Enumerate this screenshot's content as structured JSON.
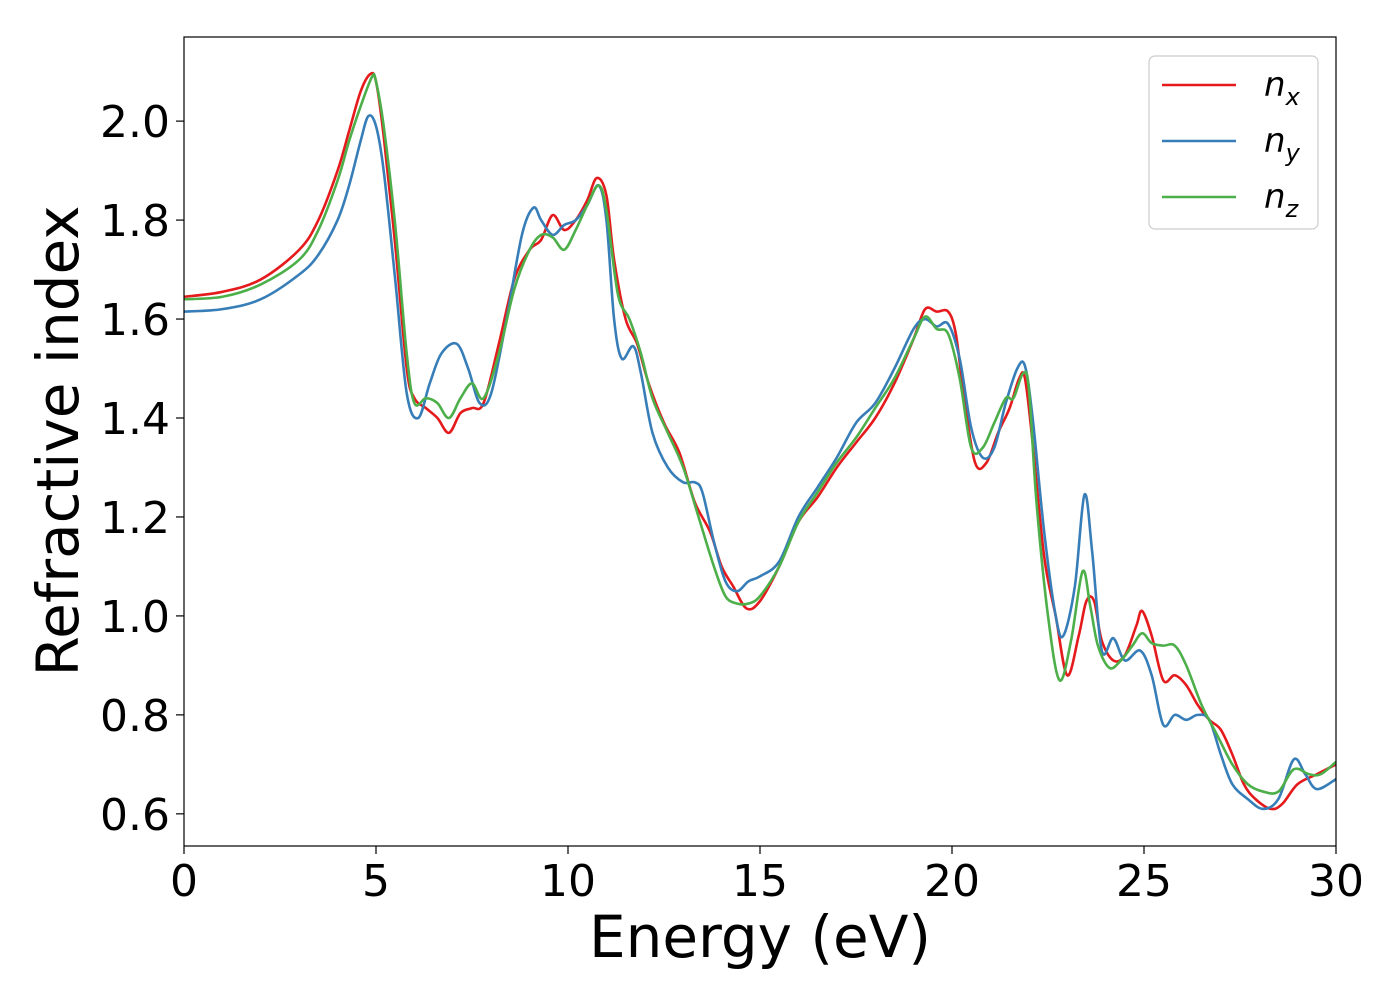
{
  "chart_data": {
    "type": "line",
    "title": "",
    "xlabel": "Energy (eV)",
    "ylabel": "Refractive index",
    "xlim": [
      0,
      30
    ],
    "ylim": [
      0.535,
      2.17
    ],
    "xticks": [
      0,
      5,
      10,
      15,
      20,
      25,
      30
    ],
    "yticks": [
      0.6,
      0.8,
      1.0,
      1.2,
      1.4,
      1.6,
      1.8,
      2.0
    ],
    "xtick_labels": [
      "0",
      "5",
      "10",
      "15",
      "20",
      "25",
      "30"
    ],
    "ytick_labels": [
      "0.6",
      "0.8",
      "1.0",
      "1.2",
      "1.4",
      "1.6",
      "1.8",
      "2.0"
    ],
    "grid": false,
    "legend_position": "top-right",
    "series": [
      {
        "name_base": "n",
        "name_sub": "x",
        "color": "#e41a1c",
        "x": [
          0,
          1,
          2,
          3,
          3.5,
          4,
          4.3,
          4.6,
          4.85,
          5.0,
          5.2,
          5.5,
          5.8,
          6.0,
          6.3,
          6.6,
          6.9,
          7.2,
          7.5,
          7.8,
          8.2,
          8.6,
          9.0,
          9.3,
          9.6,
          9.9,
          10.2,
          10.5,
          10.75,
          11.0,
          11.2,
          11.5,
          11.8,
          12.1,
          12.5,
          12.9,
          13.3,
          13.7,
          14.0,
          14.3,
          14.65,
          15.0,
          15.5,
          16.0,
          16.5,
          17.0,
          17.5,
          18.0,
          18.5,
          19.0,
          19.3,
          19.6,
          19.9,
          20.1,
          20.3,
          20.6,
          20.9,
          21.2,
          21.5,
          21.75,
          21.9,
          22.1,
          22.4,
          22.7,
          23.0,
          23.3,
          23.5,
          23.7,
          23.9,
          24.2,
          24.5,
          24.8,
          24.95,
          25.2,
          25.5,
          25.8,
          26.1,
          26.4,
          26.7,
          27.0,
          27.3,
          27.6,
          27.9,
          28.3,
          28.6,
          29.0,
          29.5,
          30.0
        ],
        "y": [
          1.645,
          1.655,
          1.68,
          1.74,
          1.8,
          1.9,
          1.98,
          2.06,
          2.095,
          2.08,
          1.97,
          1.75,
          1.5,
          1.44,
          1.42,
          1.4,
          1.37,
          1.41,
          1.42,
          1.43,
          1.55,
          1.68,
          1.74,
          1.76,
          1.81,
          1.78,
          1.8,
          1.84,
          1.885,
          1.85,
          1.72,
          1.6,
          1.55,
          1.47,
          1.39,
          1.33,
          1.23,
          1.17,
          1.1,
          1.06,
          1.015,
          1.03,
          1.1,
          1.19,
          1.24,
          1.3,
          1.35,
          1.4,
          1.47,
          1.56,
          1.62,
          1.615,
          1.615,
          1.57,
          1.45,
          1.31,
          1.31,
          1.37,
          1.42,
          1.48,
          1.48,
          1.35,
          1.12,
          1.0,
          0.88,
          0.96,
          1.03,
          1.03,
          0.95,
          0.91,
          0.92,
          0.98,
          1.01,
          0.96,
          0.87,
          0.88,
          0.86,
          0.82,
          0.79,
          0.77,
          0.72,
          0.66,
          0.63,
          0.61,
          0.62,
          0.66,
          0.68,
          0.7
        ]
      },
      {
        "name_base": "n",
        "name_sub": "y",
        "color": "#377eb8",
        "x": [
          0,
          1,
          2,
          3,
          3.5,
          4,
          4.3,
          4.6,
          4.8,
          5.0,
          5.2,
          5.5,
          5.8,
          6.1,
          6.4,
          6.7,
          7.1,
          7.4,
          7.7,
          8.0,
          8.4,
          8.8,
          9.1,
          9.3,
          9.6,
          9.9,
          10.2,
          10.5,
          10.8,
          11.0,
          11.2,
          11.4,
          11.7,
          11.9,
          12.2,
          12.6,
          13.0,
          13.3,
          13.5,
          13.8,
          14.1,
          14.4,
          14.7,
          15.0,
          15.5,
          16.0,
          16.5,
          17.0,
          17.5,
          18.0,
          18.5,
          19.0,
          19.3,
          19.6,
          19.9,
          20.2,
          20.5,
          20.8,
          21.1,
          21.4,
          21.7,
          21.9,
          22.1,
          22.4,
          22.7,
          22.9,
          23.2,
          23.45,
          23.65,
          23.9,
          24.2,
          24.5,
          24.9,
          25.2,
          25.5,
          25.8,
          26.1,
          26.4,
          26.7,
          27.0,
          27.3,
          27.7,
          28.1,
          28.5,
          28.9,
          29.2,
          29.5,
          30.0
        ],
        "y": [
          1.615,
          1.62,
          1.64,
          1.69,
          1.73,
          1.8,
          1.87,
          1.96,
          2.01,
          1.99,
          1.9,
          1.68,
          1.45,
          1.4,
          1.47,
          1.53,
          1.55,
          1.5,
          1.43,
          1.45,
          1.6,
          1.77,
          1.825,
          1.8,
          1.77,
          1.79,
          1.8,
          1.83,
          1.87,
          1.8,
          1.6,
          1.52,
          1.545,
          1.49,
          1.37,
          1.3,
          1.27,
          1.27,
          1.25,
          1.15,
          1.07,
          1.05,
          1.07,
          1.08,
          1.11,
          1.2,
          1.26,
          1.32,
          1.39,
          1.43,
          1.5,
          1.58,
          1.6,
          1.585,
          1.59,
          1.52,
          1.38,
          1.32,
          1.34,
          1.43,
          1.5,
          1.505,
          1.4,
          1.17,
          1.0,
          0.96,
          1.06,
          1.245,
          1.13,
          0.93,
          0.955,
          0.91,
          0.93,
          0.88,
          0.78,
          0.8,
          0.79,
          0.8,
          0.79,
          0.72,
          0.66,
          0.63,
          0.61,
          0.63,
          0.71,
          0.68,
          0.65,
          0.67
        ]
      },
      {
        "name_base": "n",
        "name_sub": "z",
        "color": "#4daf4a",
        "x": [
          0,
          1,
          2,
          3,
          3.5,
          4,
          4.3,
          4.6,
          4.9,
          5.0,
          5.2,
          5.5,
          5.8,
          6.0,
          6.3,
          6.6,
          6.9,
          7.2,
          7.5,
          7.8,
          8.2,
          8.6,
          9.0,
          9.3,
          9.6,
          9.9,
          10.2,
          10.5,
          10.8,
          11.0,
          11.3,
          11.6,
          11.9,
          12.2,
          12.6,
          13.0,
          13.4,
          13.8,
          14.1,
          14.4,
          14.7,
          15.0,
          15.5,
          16.0,
          16.5,
          17.0,
          17.5,
          18.0,
          18.5,
          19.0,
          19.3,
          19.6,
          19.9,
          20.2,
          20.5,
          20.8,
          21.1,
          21.4,
          21.6,
          21.85,
          22.0,
          22.2,
          22.5,
          22.8,
          23.1,
          23.4,
          23.6,
          23.8,
          24.1,
          24.4,
          24.7,
          24.95,
          25.2,
          25.5,
          25.8,
          26.1,
          26.5,
          26.9,
          27.3,
          27.7,
          28.1,
          28.5,
          28.9,
          29.3,
          29.6,
          30.0
        ],
        "y": [
          1.64,
          1.645,
          1.67,
          1.72,
          1.78,
          1.88,
          1.96,
          2.03,
          2.09,
          2.08,
          1.99,
          1.79,
          1.53,
          1.43,
          1.44,
          1.43,
          1.4,
          1.44,
          1.47,
          1.44,
          1.53,
          1.66,
          1.74,
          1.77,
          1.765,
          1.74,
          1.78,
          1.83,
          1.87,
          1.82,
          1.65,
          1.6,
          1.53,
          1.44,
          1.37,
          1.3,
          1.2,
          1.1,
          1.04,
          1.025,
          1.025,
          1.04,
          1.1,
          1.19,
          1.25,
          1.31,
          1.36,
          1.42,
          1.48,
          1.56,
          1.605,
          1.58,
          1.57,
          1.48,
          1.34,
          1.34,
          1.39,
          1.44,
          1.44,
          1.49,
          1.46,
          1.23,
          1.0,
          0.87,
          0.95,
          1.09,
          1.02,
          0.94,
          0.895,
          0.91,
          0.94,
          0.965,
          0.945,
          0.94,
          0.94,
          0.9,
          0.82,
          0.76,
          0.7,
          0.66,
          0.645,
          0.645,
          0.69,
          0.68,
          0.68,
          0.705
        ]
      }
    ]
  }
}
